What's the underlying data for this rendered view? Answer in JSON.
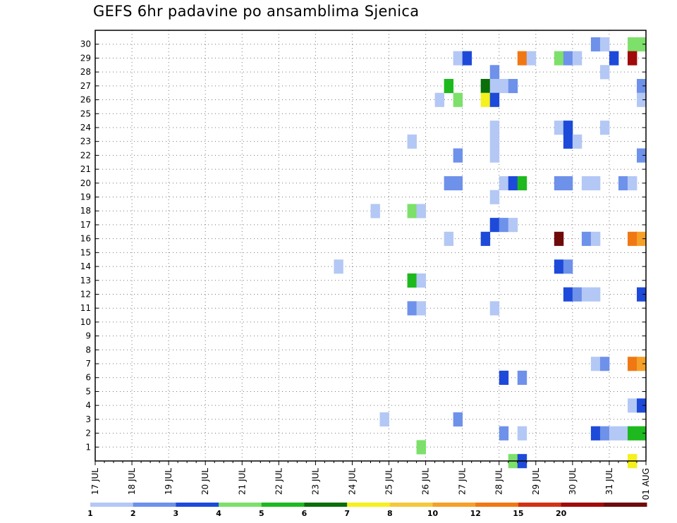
{
  "chart_data": {
    "type": "heatmap",
    "title": "GEFS 6hr padavine po ansamblima Sjenica",
    "xlabel": "",
    "ylabel": "",
    "x_ticks": [
      "17 JUL",
      "18 JUL",
      "19 JUL",
      "20 JUL",
      "21 JUL",
      "22 JUL",
      "23 JUL",
      "24 JUL",
      "25 JUL",
      "26 JUL",
      "27 JUL",
      "28 JUL",
      "29 JUL",
      "30 JUL",
      "31 JUL",
      "01 AUG"
    ],
    "y_ticks": [
      "1",
      "2",
      "3",
      "4",
      "5",
      "6",
      "7",
      "8",
      "9",
      "10",
      "11",
      "12",
      "13",
      "14",
      "15",
      "16",
      "17",
      "18",
      "19",
      "20",
      "21",
      "22",
      "23",
      "24",
      "25",
      "26",
      "27",
      "28",
      "29",
      "30"
    ],
    "x_range": [
      0,
      60
    ],
    "y_range": [
      0,
      31
    ],
    "grid": true,
    "colorscale": {
      "labels": [
        "1",
        "2",
        "3",
        "4",
        "5",
        "6",
        "7",
        "8",
        "10",
        "12",
        "15",
        "20"
      ],
      "colors": [
        "#b4c8f5",
        "#6e91ea",
        "#1e4ad9",
        "#7de06a",
        "#1eb91e",
        "#0a6e0a",
        "#f5f01e",
        "#f5c83c",
        "#f5a028",
        "#f07814",
        "#d23214",
        "#a00a0a",
        "#6e0a0a"
      ]
    },
    "cells": [
      {
        "m": 30,
        "s": [
          [
            54,
            1
          ],
          [
            55,
            0
          ]
        ]
      },
      {
        "m": 30,
        "s": [
          [
            58,
            3
          ],
          [
            59,
            3
          ]
        ]
      },
      {
        "m": 29,
        "s": [
          [
            39,
            0
          ],
          [
            40,
            2
          ]
        ]
      },
      {
        "m": 29,
        "s": [
          [
            46,
            9
          ],
          [
            47,
            0
          ]
        ]
      },
      {
        "m": 29,
        "s": [
          [
            50,
            3
          ],
          [
            51,
            1
          ],
          [
            52,
            0
          ]
        ]
      },
      {
        "m": 29,
        "s": [
          [
            56,
            2
          ]
        ]
      },
      {
        "m": 29,
        "s": [
          [
            58,
            11
          ]
        ]
      },
      {
        "m": 28,
        "s": [
          [
            43,
            1
          ]
        ]
      },
      {
        "m": 28,
        "s": [
          [
            55,
            0
          ]
        ]
      },
      {
        "m": 27,
        "s": [
          [
            38,
            4
          ]
        ]
      },
      {
        "m": 27,
        "s": [
          [
            42,
            5
          ],
          [
            43,
            0
          ],
          [
            44,
            0
          ],
          [
            45,
            1
          ]
        ]
      },
      {
        "m": 27,
        "s": [
          [
            59,
            1
          ]
        ]
      },
      {
        "m": 26,
        "s": [
          [
            37,
            0
          ]
        ]
      },
      {
        "m": 26,
        "s": [
          [
            39,
            3
          ]
        ]
      },
      {
        "m": 26,
        "s": [
          [
            42,
            6
          ],
          [
            43,
            2
          ]
        ]
      },
      {
        "m": 26,
        "s": [
          [
            59,
            0
          ]
        ]
      },
      {
        "m": 24,
        "s": [
          [
            43,
            0
          ]
        ]
      },
      {
        "m": 24,
        "s": [
          [
            50,
            0
          ],
          [
            51,
            2
          ]
        ]
      },
      {
        "m": 24,
        "s": [
          [
            55,
            0
          ]
        ]
      },
      {
        "m": 23,
        "s": [
          [
            34,
            0
          ]
        ]
      },
      {
        "m": 23,
        "s": [
          [
            43,
            0
          ]
        ]
      },
      {
        "m": 23,
        "s": [
          [
            51,
            2
          ],
          [
            52,
            0
          ]
        ]
      },
      {
        "m": 22,
        "s": [
          [
            39,
            1
          ]
        ]
      },
      {
        "m": 22,
        "s": [
          [
            43,
            0
          ]
        ]
      },
      {
        "m": 22,
        "s": [
          [
            59,
            1
          ]
        ]
      },
      {
        "m": 20,
        "s": [
          [
            38,
            1
          ],
          [
            39,
            1
          ]
        ]
      },
      {
        "m": 20,
        "s": [
          [
            44,
            0
          ],
          [
            45,
            2
          ],
          [
            46,
            4
          ]
        ]
      },
      {
        "m": 20,
        "s": [
          [
            50,
            1
          ],
          [
            51,
            1
          ]
        ]
      },
      {
        "m": 20,
        "s": [
          [
            53,
            0
          ],
          [
            54,
            0
          ]
        ]
      },
      {
        "m": 20,
        "s": [
          [
            57,
            1
          ],
          [
            58,
            0
          ]
        ]
      },
      {
        "m": 19,
        "s": [
          [
            43,
            0
          ]
        ]
      },
      {
        "m": 18,
        "s": [
          [
            30,
            0
          ]
        ]
      },
      {
        "m": 18,
        "s": [
          [
            34,
            3
          ],
          [
            35,
            0
          ]
        ]
      },
      {
        "m": 17,
        "s": [
          [
            43,
            2
          ],
          [
            44,
            1
          ],
          [
            45,
            0
          ]
        ]
      },
      {
        "m": 16,
        "s": [
          [
            38,
            0
          ]
        ]
      },
      {
        "m": 16,
        "s": [
          [
            42,
            2
          ]
        ]
      },
      {
        "m": 16,
        "s": [
          [
            50,
            12
          ]
        ]
      },
      {
        "m": 16,
        "s": [
          [
            53,
            1
          ],
          [
            54,
            0
          ]
        ]
      },
      {
        "m": 16,
        "s": [
          [
            58,
            9
          ],
          [
            59,
            8
          ]
        ]
      },
      {
        "m": 14,
        "s": [
          [
            50,
            2
          ],
          [
            51,
            1
          ]
        ]
      },
      {
        "m": 14,
        "s": [
          [
            26,
            0
          ]
        ]
      },
      {
        "m": 13,
        "s": [
          [
            34,
            4
          ],
          [
            35,
            0
          ]
        ]
      },
      {
        "m": 12,
        "s": [
          [
            51,
            2
          ],
          [
            52,
            1
          ],
          [
            53,
            0
          ],
          [
            54,
            0
          ]
        ]
      },
      {
        "m": 12,
        "s": [
          [
            59,
            2
          ]
        ]
      },
      {
        "m": 11,
        "s": [
          [
            34,
            1
          ],
          [
            35,
            0
          ]
        ]
      },
      {
        "m": 11,
        "s": [
          [
            43,
            0
          ]
        ]
      },
      {
        "m": 7,
        "s": [
          [
            54,
            0
          ],
          [
            55,
            1
          ]
        ]
      },
      {
        "m": 7,
        "s": [
          [
            58,
            9
          ],
          [
            59,
            8
          ]
        ]
      },
      {
        "m": 6,
        "s": [
          [
            44,
            2
          ]
        ]
      },
      {
        "m": 6,
        "s": [
          [
            46,
            1
          ]
        ]
      },
      {
        "m": 4,
        "s": [
          [
            58,
            0
          ],
          [
            59,
            2
          ]
        ]
      },
      {
        "m": 3,
        "s": [
          [
            31,
            0
          ]
        ]
      },
      {
        "m": 3,
        "s": [
          [
            39,
            1
          ]
        ]
      },
      {
        "m": 2,
        "s": [
          [
            44,
            1
          ]
        ]
      },
      {
        "m": 2,
        "s": [
          [
            46,
            0
          ]
        ]
      },
      {
        "m": 2,
        "s": [
          [
            54,
            2
          ],
          [
            55,
            1
          ],
          [
            56,
            0
          ],
          [
            57,
            0
          ]
        ]
      },
      {
        "m": 2,
        "s": [
          [
            58,
            4
          ],
          [
            59,
            4
          ]
        ]
      },
      {
        "m": 1,
        "s": [
          [
            35,
            3
          ]
        ]
      },
      {
        "m": 0,
        "s": [
          [
            45,
            3
          ],
          [
            46,
            2
          ]
        ]
      },
      {
        "m": 0,
        "s": [
          [
            58,
            6
          ]
        ]
      }
    ]
  }
}
